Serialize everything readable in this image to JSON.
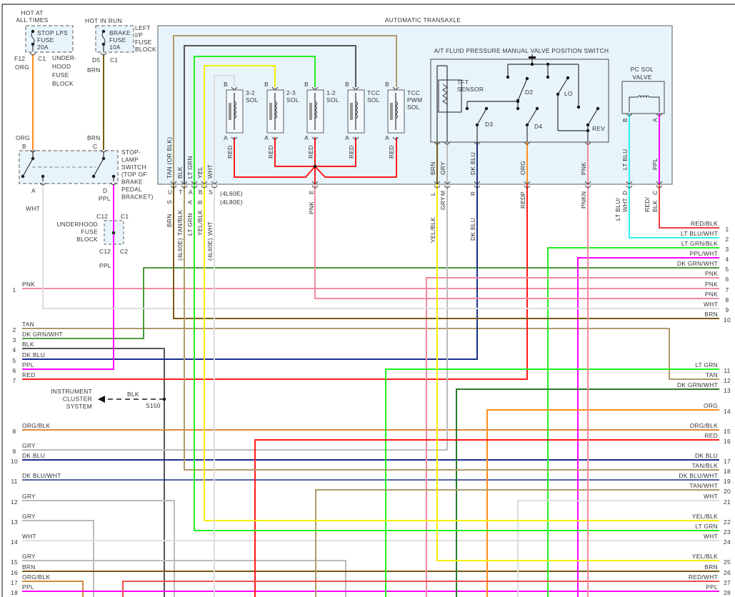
{
  "colors": {
    "PNK": "#f4899e",
    "TAN": "#b09a6a",
    "DKGRNWHT": "#4c9a3c",
    "DKGRN": "#2a7a2a",
    "BLK": "#555555",
    "DKBLU": "#1a2f8a",
    "PPL": "#ff00ff",
    "RED": "#ff1a1a",
    "ORGBLK": "#d98a3a",
    "GRY": "#bbbbbb",
    "WHT": "#dddddd",
    "BRN": "#7a5a10",
    "ORG": "#ff8c1a",
    "LTGRN": "#22ee22",
    "YEL": "#f5ee00",
    "LTBLU": "#30f0f0",
    "REDBLK": "#f04040",
    "REDWHT": "#f05050",
    "box_fill": "#e8f4fb",
    "box_stroke": "#888888"
  },
  "fuse_stop": {
    "hot": [
      "HOT AT",
      "ALL TIMES"
    ],
    "name": [
      "STOP LPS",
      "FUSE",
      "20A"
    ],
    "cavity": "F12",
    "conn": "C1",
    "block": [
      "UNDER-",
      "HOOD",
      "FUSE",
      "BLOCK"
    ],
    "wire": "ORG"
  },
  "fuse_brake": {
    "hot": [
      "HOT IN RUN"
    ],
    "name": [
      "BRAKE",
      "FUSE",
      "10A"
    ],
    "cavity": "D5",
    "conn": "C1",
    "block": [
      "LEFT",
      "I/P",
      "FUSE",
      "BLOCK"
    ],
    "wire": "BRN"
  },
  "stoplamp": {
    "pin_b": "B",
    "wire_b": "ORG",
    "pin_c": "C",
    "wire_c": "BRN",
    "name": [
      "STOP-",
      "LAMP",
      "SWITCH",
      "(TOP OF",
      "BRAKE",
      "PEDAL",
      "BRACKET)"
    ],
    "pin_a": "A",
    "wire_a": "WHT",
    "pin_d": "D",
    "wire_d": "PPL"
  },
  "underhood": {
    "c12_top": "C12",
    "c1": "C1",
    "name": [
      "UNDERHOOD",
      "FUSE",
      "BLOCK"
    ],
    "c12_bot": "C12",
    "c2": "C2",
    "wire": "PPL"
  },
  "splice": {
    "dest": [
      "INSTRUMENT",
      "CLUSTER",
      "SYSTEM"
    ],
    "wire": "BLK",
    "id": "S150"
  },
  "transaxle": {
    "title": "AUTOMATIC TRANSAXLE",
    "inner_wires": [
      "TAN (OR BLK)",
      "BLK",
      "LT GRN",
      "YEL",
      "WHT"
    ],
    "pins_4l60e": [
      "U",
      "T",
      "A",
      "B",
      "S"
    ],
    "pins_4l80e": [
      "S",
      "",
      "A",
      "B",
      ""
    ],
    "outer_wires": [
      "BRN",
      "TAN/BLK",
      "LT GRN",
      "YEL/BLK",
      "WHT"
    ],
    "model_4l60e": "(4L60E)",
    "model_4l80e": "(4L80E)",
    "wire_note": "(4L60E)",
    "sol_pin_a": "A",
    "sol_pin_b": "B",
    "sol_wire": "RED",
    "solenoids": [
      {
        "name": [
          "3-2",
          "SOL"
        ]
      },
      {
        "name": [
          "2-3",
          "SOL"
        ]
      },
      {
        "name": [
          "1-2",
          "SOL"
        ]
      },
      {
        "name": [
          "TCC",
          "SOL"
        ]
      },
      {
        "name": [
          "TCC",
          "PWM",
          "SOL"
        ]
      }
    ],
    "pin_e": "E",
    "wire_e": "PNK"
  },
  "manual_valve": {
    "title": "A/T FLUID PRESSURE MANUAL VALVE POSITION SWITCH",
    "tft": [
      "TFT",
      "SENSOR"
    ],
    "positions": [
      "D2",
      "D3",
      "D4",
      "LO",
      "REV"
    ],
    "inner_wires": [
      "BRN",
      "GRY",
      "DK BLU",
      "ORG",
      "PNK"
    ],
    "pins": [
      "L",
      "M",
      "R",
      "P",
      "N"
    ],
    "outer_wires": [
      "YEL/BLK",
      "GRY",
      "DK BLU",
      "RED",
      "PNK"
    ]
  },
  "pc_sol": {
    "name": [
      "PC SOL",
      "VALVE"
    ],
    "inner_pins": [
      "B",
      "A"
    ],
    "inner_wires": [
      "LT BLU",
      "PPL"
    ],
    "pins": [
      "D",
      "C"
    ],
    "outer_wires": [
      [
        "LT BLU/",
        "WHT"
      ],
      [
        "RED/",
        "BLK"
      ]
    ]
  },
  "left_rows": [
    {
      "num": "1",
      "label": "PNK"
    },
    {
      "num": "2",
      "label": "TAN"
    },
    {
      "num": "3",
      "label": "DK GRN/WHT"
    },
    {
      "num": "4",
      "label": "BLK"
    },
    {
      "num": "5",
      "label": "DK BLU"
    },
    {
      "num": "6",
      "label": "PPL"
    },
    {
      "num": "7",
      "label": "RED"
    },
    {
      "num": "8",
      "label": "ORG/BLK"
    },
    {
      "num": "9",
      "label": "GRY"
    },
    {
      "num": "10",
      "label": "DK BLU"
    },
    {
      "num": "11",
      "label": "DK BLU/WHT"
    },
    {
      "num": "12",
      "label": "GRY"
    },
    {
      "num": "13",
      "label": "GRY"
    },
    {
      "num": "14",
      "label": "WHT"
    },
    {
      "num": "15",
      "label": "GRY"
    },
    {
      "num": "16",
      "label": "BRN"
    },
    {
      "num": "17",
      "label": "ORG/BLK"
    },
    {
      "num": "18",
      "label": "PPL"
    }
  ],
  "right_rows": [
    {
      "num": "1",
      "label": "RED/BLK"
    },
    {
      "num": "2",
      "label": "LT BLU/WHT"
    },
    {
      "num": "3",
      "label": "LT GRN/BLK"
    },
    {
      "num": "4",
      "label": "PPL/WHT"
    },
    {
      "num": "5",
      "label": "DK GRN/WHT"
    },
    {
      "num": "6",
      "label": "PNK"
    },
    {
      "num": "7",
      "label": "PNK"
    },
    {
      "num": "8",
      "label": "PNK"
    },
    {
      "num": "9",
      "label": "WHT"
    },
    {
      "num": "10",
      "label": "BRN"
    },
    {
      "num": "11",
      "label": "LT GRN"
    },
    {
      "num": "12",
      "label": "TAN"
    },
    {
      "num": "13",
      "label": "DK GRN/WHT"
    },
    {
      "num": "14",
      "label": "ORG"
    },
    {
      "num": "15",
      "label": "ORG/BLK"
    },
    {
      "num": "16",
      "label": "RED"
    },
    {
      "num": "17",
      "label": "DK BLU"
    },
    {
      "num": "18",
      "label": "TAN/BLK"
    },
    {
      "num": "19",
      "label": "DK BLU/WHT"
    },
    {
      "num": "20",
      "label": "TAN/WHT"
    },
    {
      "num": "21",
      "label": "WHT"
    },
    {
      "num": "22",
      "label": "YEL/BLK"
    },
    {
      "num": "23",
      "label": "LT GRN"
    },
    {
      "num": "24",
      "label": "WHT"
    },
    {
      "num": "25",
      "label": "YEL/BLK"
    },
    {
      "num": "26",
      "label": "BRN"
    },
    {
      "num": "27",
      "label": "RED/WHT"
    },
    {
      "num": "28",
      "label": "PPL"
    }
  ]
}
